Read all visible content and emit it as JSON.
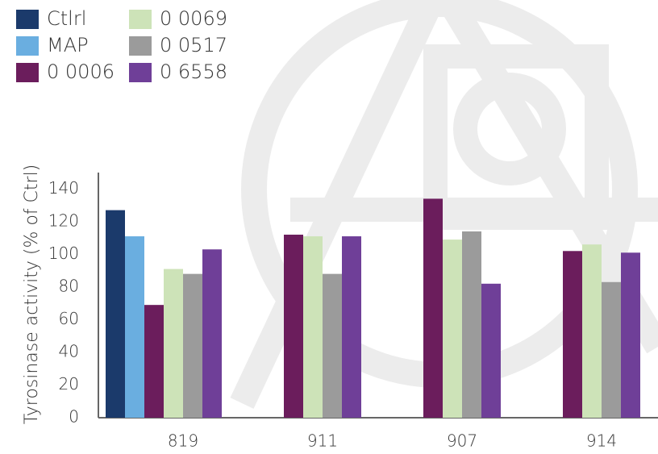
{
  "chart_data": {
    "type": "bar",
    "y_label": "Tyrosinase activity (% of Ctrl)",
    "categories": [
      "819",
      "911",
      "907",
      "914"
    ],
    "series": [
      {
        "name": "Ctlrl",
        "color": "#1b3a6b",
        "values": [
          127,
          null,
          null,
          null
        ]
      },
      {
        "name": "MAP",
        "color": "#6aaee0",
        "values": [
          111,
          null,
          null,
          null
        ]
      },
      {
        "name": "0 0006",
        "color": "#6b1d5c",
        "values": [
          69,
          112,
          134,
          102
        ]
      },
      {
        "name": "0 0069",
        "color": "#cde3b8",
        "values": [
          91,
          111,
          109,
          106
        ]
      },
      {
        "name": "0 0517",
        "color": "#9b9b9b",
        "values": [
          88,
          88,
          114,
          83
        ]
      },
      {
        "name": "0 6558",
        "color": "#6f3f98",
        "values": [
          103,
          111,
          82,
          101
        ]
      }
    ],
    "ylim": [
      0,
      150
    ],
    "yticks": [
      0,
      20,
      40,
      60,
      80,
      100,
      120,
      140
    ]
  }
}
